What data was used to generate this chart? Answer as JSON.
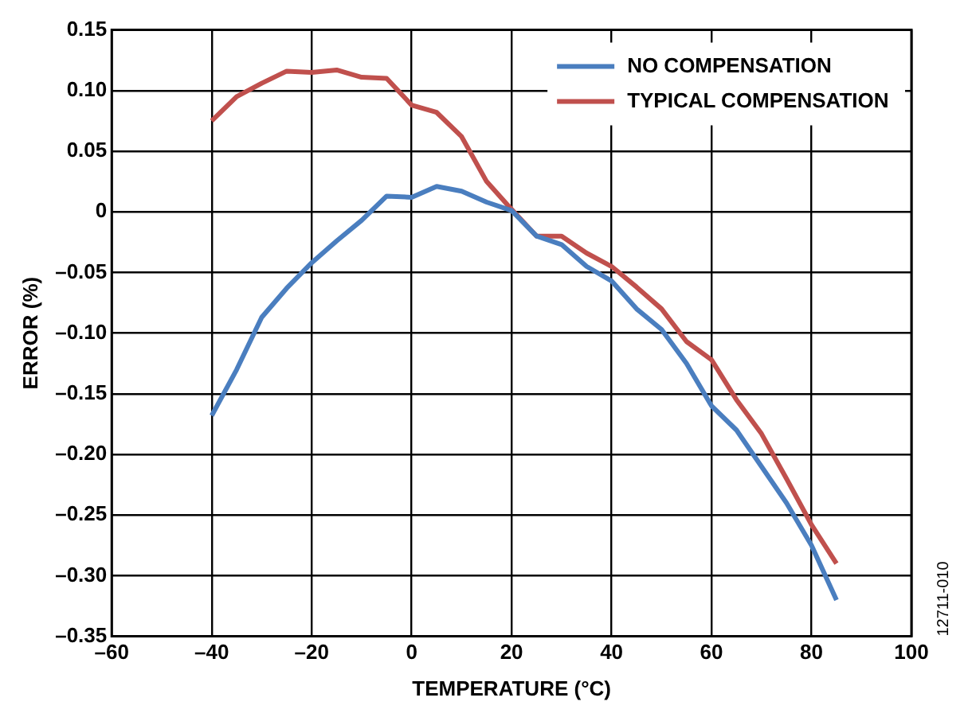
{
  "chart_data": {
    "type": "line",
    "xlabel": "TEMPERATURE (°C)",
    "ylabel": "ERROR (%)",
    "annotations": [
      "12711-010"
    ],
    "x": [
      -40,
      -35,
      -30,
      -25,
      -20,
      -15,
      -10,
      -5,
      0,
      5,
      10,
      15,
      20,
      25,
      30,
      35,
      40,
      45,
      50,
      55,
      60,
      65,
      70,
      75,
      80,
      85
    ],
    "series": [
      {
        "name": "NO COMPENSATION",
        "color": "#4a7ebf",
        "values": [
          -0.168,
          -0.13,
          -0.087,
          -0.063,
          -0.042,
          -0.024,
          -0.007,
          0.013,
          0.012,
          0.021,
          0.017,
          0.008,
          0.001,
          -0.02,
          -0.027,
          -0.045,
          -0.057,
          -0.08,
          -0.097,
          -0.125,
          -0.16,
          -0.18,
          -0.21,
          -0.24,
          -0.275,
          -0.32
        ]
      },
      {
        "name": "TYPICAL COMPENSATION",
        "color": "#c0504d",
        "values": [
          0.075,
          0.095,
          0.106,
          0.116,
          0.115,
          0.117,
          0.111,
          0.11,
          0.088,
          0.082,
          0.062,
          0.025,
          0.002,
          -0.02,
          -0.02,
          -0.034,
          -0.045,
          -0.062,
          -0.08,
          -0.107,
          -0.122,
          -0.155,
          -0.183,
          -0.22,
          -0.258,
          -0.29
        ]
      }
    ],
    "xlim": [
      -60,
      100
    ],
    "xticks": [
      {
        "value": -60,
        "label": "–60"
      },
      {
        "value": -40,
        "label": "–40"
      },
      {
        "value": -20,
        "label": "–20"
      },
      0,
      20,
      40,
      60,
      80,
      100
    ],
    "ylim": [
      -0.35,
      0.15
    ],
    "yticks": [
      {
        "value": -0.35,
        "label": "–0.35"
      },
      {
        "value": -0.3,
        "label": "–0.30"
      },
      {
        "value": -0.25,
        "label": "–0.25"
      },
      {
        "value": -0.2,
        "label": "–0.20"
      },
      {
        "value": -0.15,
        "label": "–0.15"
      },
      {
        "value": -0.1,
        "label": "–0.10"
      },
      {
        "value": -0.05,
        "label": "–0.05"
      },
      {
        "value": 0,
        "label": "0"
      },
      {
        "value": 0.05,
        "label": "0.05"
      },
      {
        "value": 0.1,
        "label": "0.10"
      },
      {
        "value": 0.15,
        "label": "0.15"
      }
    ],
    "grid": true,
    "legend": "top right",
    "marker": "none",
    "line_style": "solid"
  }
}
